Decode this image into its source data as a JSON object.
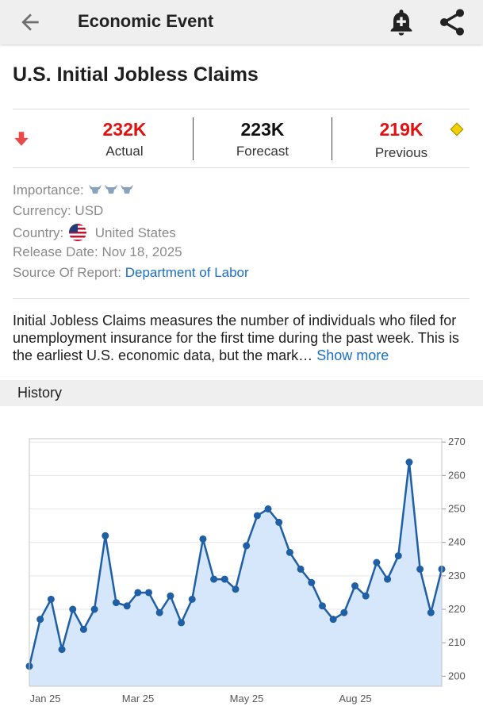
{
  "appbar": {
    "title": "Economic Event",
    "back_icon": "arrow-back-icon",
    "bell_icon": "add-alert-bell-icon",
    "share_icon": "share-icon"
  },
  "event": {
    "title": "U.S. Initial Jobless Claims"
  },
  "stats": {
    "actual_value": "232K",
    "actual_label": "Actual",
    "forecast_value": "223K",
    "forecast_label": "Forecast",
    "previous_value": "219K",
    "previous_label": "Previous",
    "colors": {
      "actual": "#e31010",
      "forecast": "#111111",
      "previous": "#e31010",
      "arrow": "#e84a4a"
    }
  },
  "details": {
    "importance_label": "Importance:",
    "importance_level": 3,
    "currency_label": "Currency:",
    "currency_value": "USD",
    "country_label": "Country:",
    "country_value": "United States",
    "release_label": "Release Date:",
    "release_value": "Nov 18, 2025",
    "source_label": "Source Of Report:",
    "source_value": "Department of Labor"
  },
  "description": {
    "text": "Initial Jobless Claims measures the number of individuals who filed for unemployment insurance for the first time during the past week. This is the earliest U.S. economic data, but the mark…",
    "show_more": "Show more"
  },
  "history": {
    "title": "History"
  },
  "chart_data": {
    "type": "area",
    "x_tick_labels": [
      "Jan 25",
      "Mar 25",
      "May 25",
      "Aug 25"
    ],
    "y_tick_labels": [
      "200",
      "210",
      "220",
      "230",
      "240",
      "250",
      "260",
      "270"
    ],
    "ylim": [
      197,
      271
    ],
    "y_axis_side": "right",
    "grid": true,
    "line_color": "#1f5fa5",
    "fill_color": "#d6e6fb",
    "values": [
      203,
      217,
      223,
      208,
      220,
      214,
      220,
      242,
      222,
      221,
      225,
      225,
      219,
      224,
      216,
      223,
      241,
      229,
      229,
      226,
      239,
      248,
      250,
      246,
      237,
      232,
      228,
      221,
      217,
      219,
      227,
      224,
      234,
      229,
      236,
      264,
      232,
      219,
      232
    ]
  }
}
